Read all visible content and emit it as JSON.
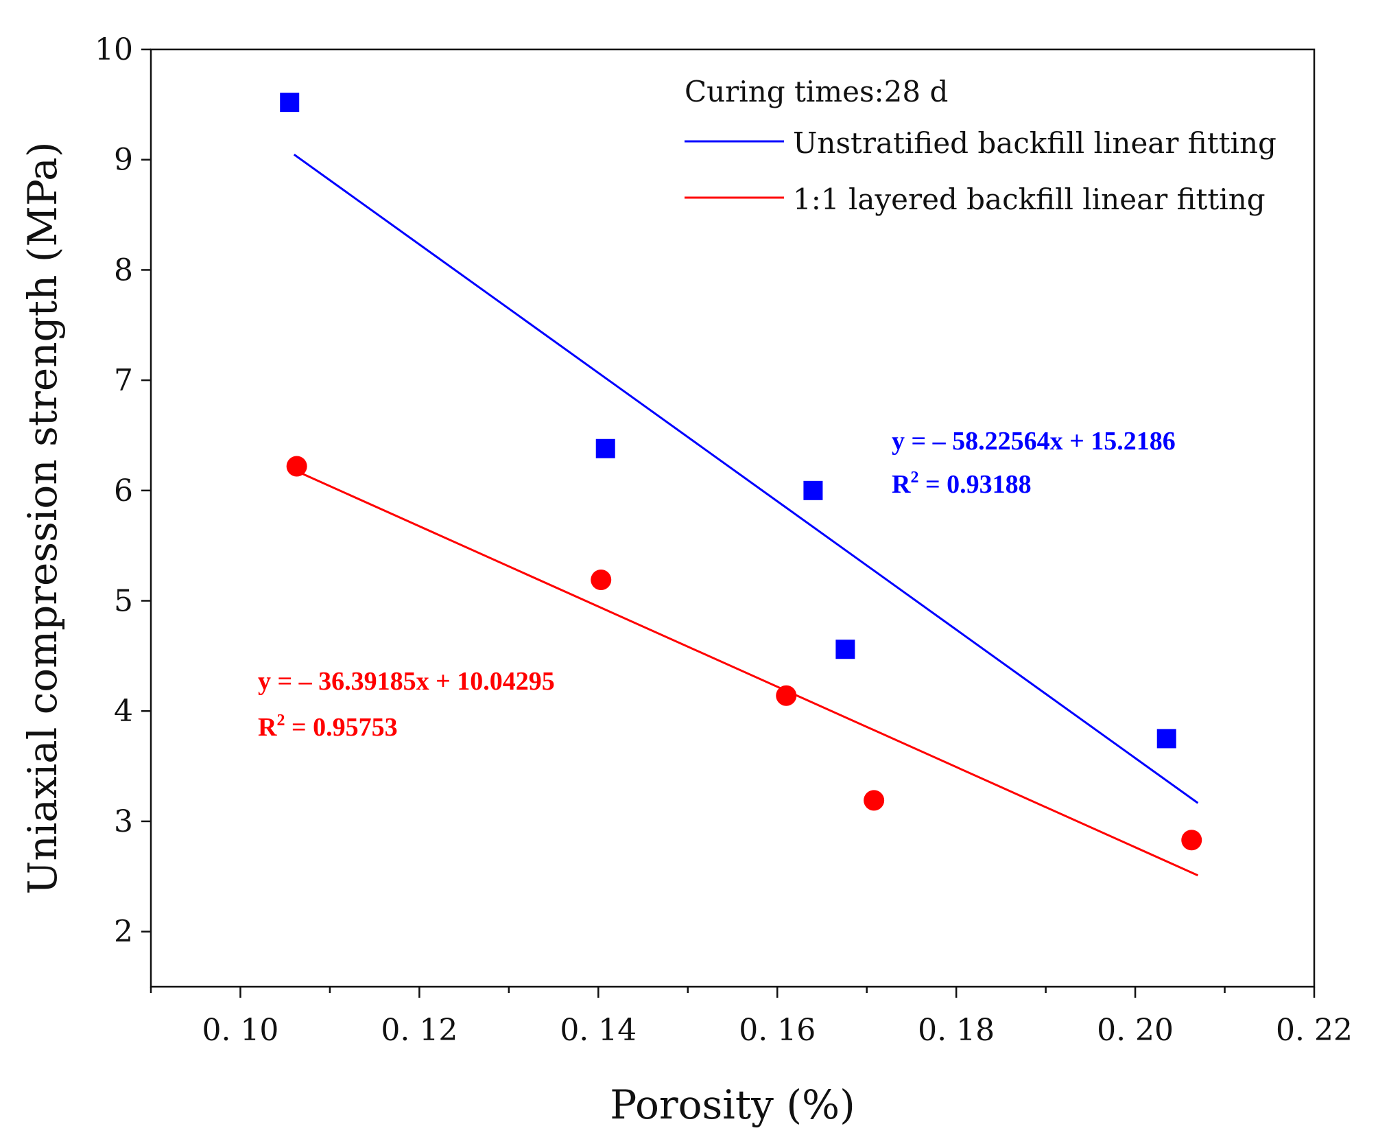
{
  "chart_data": {
    "type": "scatter",
    "xlabel": "Porosity (%)",
    "ylabel": "Uniaxial compression strength (MPa)",
    "xlim": [
      0.09,
      0.22
    ],
    "ylim": [
      1.5,
      10
    ],
    "x_ticks": [
      0.1,
      0.12,
      0.14,
      0.16,
      0.18,
      0.2,
      0.22
    ],
    "x_tick_labels": [
      "0. 10",
      "0. 12",
      "0. 14",
      "0. 16",
      "0. 18",
      "0. 20",
      "0. 22"
    ],
    "y_ticks": [
      2,
      3,
      4,
      5,
      6,
      7,
      8,
      9,
      10
    ],
    "y_tick_labels": [
      "2",
      "3",
      "4",
      "5",
      "6",
      "7",
      "8",
      "9",
      "10"
    ],
    "legend": {
      "title": "Curing times:28 d",
      "position": "top-right",
      "entries": [
        "Unstratified backfill linear fitting",
        "1:1 layered backfill linear fitting"
      ]
    },
    "series": [
      {
        "name": "Unstratified backfill",
        "marker": "square",
        "color": "#0000ff",
        "x": [
          0.1055,
          0.1408,
          0.164,
          0.1676,
          0.2035
        ],
        "y": [
          9.52,
          6.38,
          6.0,
          4.56,
          3.75
        ],
        "fit": {
          "x_range": [
            0.106,
            0.207
          ],
          "slope": -58.22564,
          "intercept": 15.2186,
          "equation": "y = – 58.22564x + 15.2186",
          "r2_label": "R",
          "r2_sup": "2",
          "r2_value": " = 0.93188"
        }
      },
      {
        "name": "1:1 layered backfill",
        "marker": "circle",
        "color": "#ff0000",
        "x": [
          0.1063,
          0.1403,
          0.161,
          0.1708,
          0.2063
        ],
        "y": [
          6.22,
          5.19,
          4.14,
          3.19,
          2.83
        ],
        "fit": {
          "x_range": [
            0.106,
            0.207
          ],
          "slope": -36.39185,
          "intercept": 10.04295,
          "equation": "y = – 36.39185x + 10.04295",
          "r2_label": "R",
          "r2_sup": "2",
          "r2_value": " = 0.95753"
        }
      }
    ]
  }
}
